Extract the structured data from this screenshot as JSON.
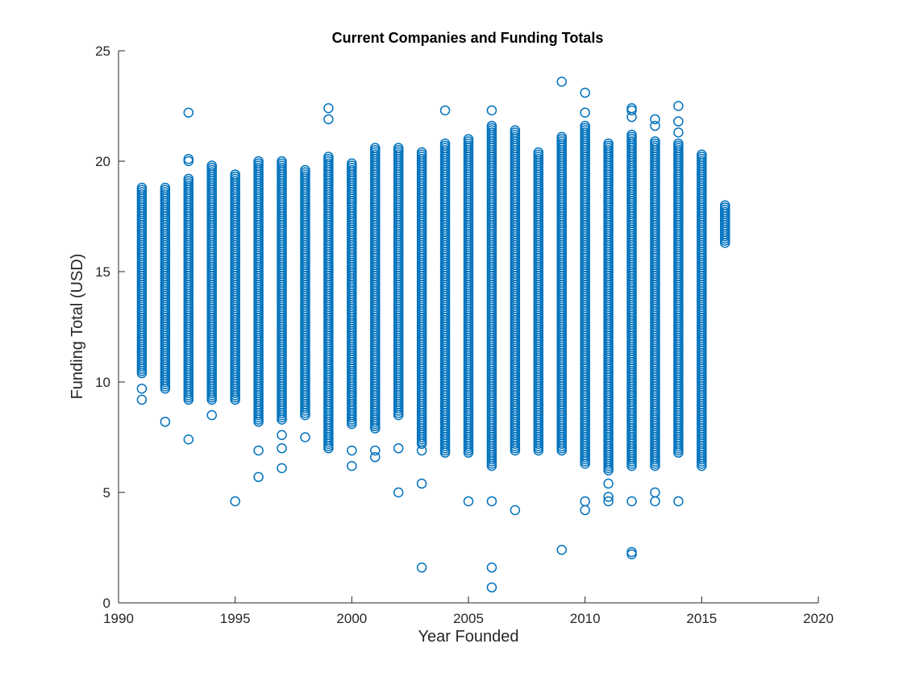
{
  "chart_data": {
    "type": "scatter",
    "title": "Current Companies and Funding Totals",
    "xlabel": "Year Founded",
    "ylabel": "Funding Total (USD)",
    "xlim": [
      1990,
      2020
    ],
    "ylim": [
      0,
      25
    ],
    "xticks": [
      1990,
      1995,
      2000,
      2005,
      2010,
      2015,
      2020
    ],
    "yticks": [
      0,
      5,
      10,
      15,
      20,
      25
    ],
    "grid": false,
    "legend": "none",
    "marker": "open-circle",
    "color": "#0072BD",
    "series": [
      {
        "columns": [
          {
            "year": 1991,
            "low": 10.4,
            "high": 18.8,
            "extra": [
              9.7,
              9.2
            ]
          },
          {
            "year": 1992,
            "low": 9.7,
            "high": 18.8,
            "extra": [
              8.2
            ]
          },
          {
            "year": 1993,
            "low": 9.2,
            "high": 19.2,
            "extra": [
              20.1,
              20.0,
              22.2,
              7.4
            ]
          },
          {
            "year": 1994,
            "low": 9.2,
            "high": 19.8,
            "extra": [
              8.5
            ]
          },
          {
            "year": 1995,
            "low": 9.2,
            "high": 19.4,
            "extra": [
              4.6
            ]
          },
          {
            "year": 1996,
            "low": 8.2,
            "high": 20.0,
            "extra": [
              6.9,
              5.7
            ]
          },
          {
            "year": 1997,
            "low": 8.3,
            "high": 20.0,
            "extra": [
              7.6,
              7.0,
              6.1
            ]
          },
          {
            "year": 1998,
            "low": 8.5,
            "high": 19.6,
            "extra": [
              7.5
            ]
          },
          {
            "year": 1999,
            "low": 7.0,
            "high": 20.2,
            "extra": [
              22.4,
              21.9
            ]
          },
          {
            "year": 2000,
            "low": 8.1,
            "high": 19.9,
            "extra": [
              6.9,
              6.2
            ]
          },
          {
            "year": 2001,
            "low": 7.9,
            "high": 20.6,
            "extra": [
              6.9,
              6.6
            ]
          },
          {
            "year": 2002,
            "low": 8.5,
            "high": 20.6,
            "extra": [
              7.0,
              5.0
            ]
          },
          {
            "year": 2003,
            "low": 7.2,
            "high": 20.4,
            "extra": [
              6.9,
              5.4,
              1.6
            ]
          },
          {
            "year": 2004,
            "low": 6.8,
            "high": 20.8,
            "extra": [
              22.3
            ]
          },
          {
            "year": 2005,
            "low": 6.8,
            "high": 21.0,
            "extra": [
              4.6
            ]
          },
          {
            "year": 2006,
            "low": 6.2,
            "high": 21.6,
            "extra": [
              22.3,
              4.6,
              1.6,
              0.7
            ]
          },
          {
            "year": 2007,
            "low": 6.9,
            "high": 21.4,
            "extra": [
              4.2
            ]
          },
          {
            "year": 2008,
            "low": 6.9,
            "high": 20.4,
            "extra": []
          },
          {
            "year": 2009,
            "low": 6.9,
            "high": 21.1,
            "extra": [
              23.6,
              2.4
            ]
          },
          {
            "year": 2010,
            "low": 6.3,
            "high": 21.6,
            "extra": [
              23.1,
              22.2,
              4.6,
              4.2
            ]
          },
          {
            "year": 2011,
            "low": 6.0,
            "high": 20.8,
            "extra": [
              5.4,
              4.8,
              4.6
            ]
          },
          {
            "year": 2012,
            "low": 6.2,
            "high": 21.2,
            "extra": [
              22.4,
              22.3,
              22.0,
              4.6,
              2.3,
              2.2
            ]
          },
          {
            "year": 2013,
            "low": 6.2,
            "high": 20.9,
            "extra": [
              21.9,
              21.6,
              5.0,
              4.6
            ]
          },
          {
            "year": 2014,
            "low": 6.8,
            "high": 20.8,
            "extra": [
              22.5,
              21.8,
              21.3,
              4.6
            ]
          },
          {
            "year": 2015,
            "low": 6.2,
            "high": 20.3,
            "extra": []
          },
          {
            "year": 2016,
            "low": 16.3,
            "high": 18.0,
            "extra": []
          }
        ]
      }
    ]
  }
}
